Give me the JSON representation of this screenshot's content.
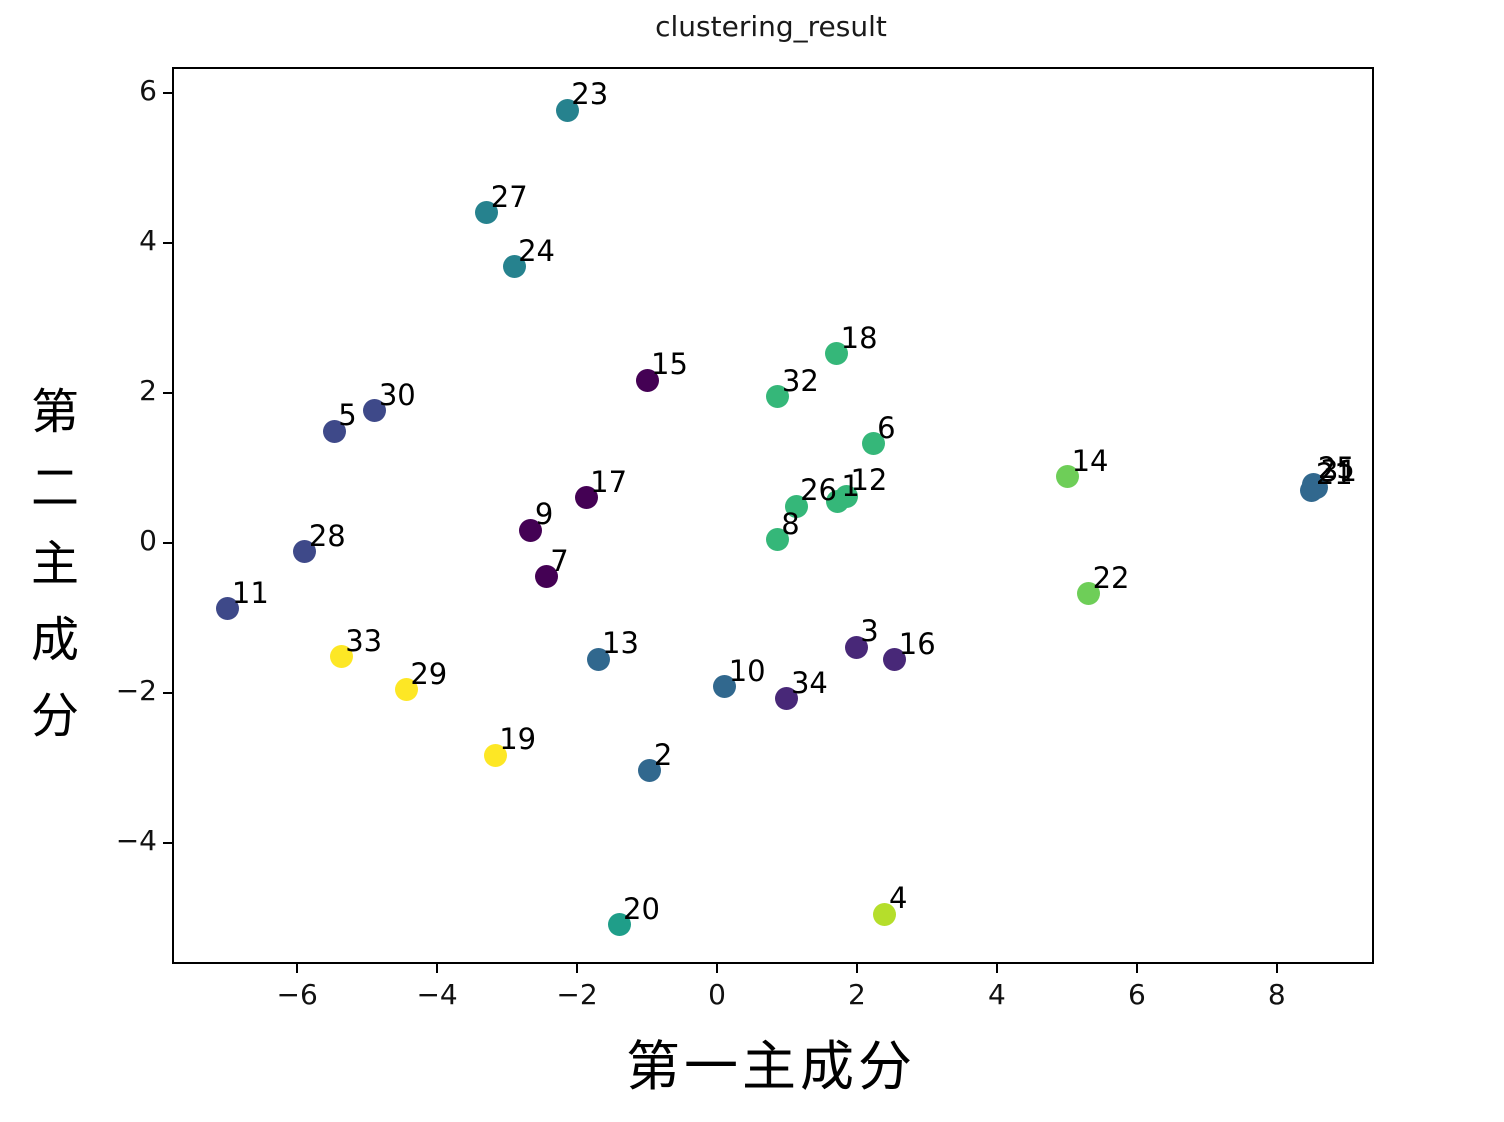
{
  "chart_data": {
    "type": "scatter",
    "title": "clustering_result",
    "xlabel": "第一主成分",
    "ylabel": "第二主成分",
    "xlim": [
      -7.76,
      9.36
    ],
    "ylim": [
      -5.59,
      6.32
    ],
    "xticks": [
      -6,
      -4,
      -2,
      0,
      2,
      4,
      6,
      8
    ],
    "yticks": [
      -4,
      -2,
      0,
      2,
      4,
      6
    ],
    "grid": false,
    "legend": "none",
    "cluster_colors": [
      "#440154",
      "#482878",
      "#3e4989",
      "#31688e",
      "#26828e",
      "#1f9e89",
      "#35b779",
      "#6ece58",
      "#b5de2b",
      "#fde725"
    ],
    "points": [
      {
        "label": "1",
        "x": 1.72,
        "y": 0.55,
        "cluster": 6
      },
      {
        "label": "2",
        "x": -0.96,
        "y": -3.04,
        "cluster": 3
      },
      {
        "label": "3",
        "x": 1.99,
        "y": -1.39,
        "cluster": 1
      },
      {
        "label": "4",
        "x": 2.4,
        "y": -4.95,
        "cluster": 8
      },
      {
        "label": "5",
        "x": -5.47,
        "y": 1.49,
        "cluster": 2
      },
      {
        "label": "6",
        "x": 2.23,
        "y": 1.32,
        "cluster": 6
      },
      {
        "label": "7",
        "x": -2.44,
        "y": -0.45,
        "cluster": 0
      },
      {
        "label": "8",
        "x": 0.86,
        "y": 0.04,
        "cluster": 6
      },
      {
        "label": "9",
        "x": -2.66,
        "y": 0.17,
        "cluster": 0
      },
      {
        "label": "10",
        "x": 0.11,
        "y": -1.92,
        "cluster": 3
      },
      {
        "label": "11",
        "x": -6.99,
        "y": -0.88,
        "cluster": 2
      },
      {
        "label": "12",
        "x": 1.85,
        "y": 0.62,
        "cluster": 6
      },
      {
        "label": "13",
        "x": -1.7,
        "y": -1.55,
        "cluster": 3
      },
      {
        "label": "14",
        "x": 5.01,
        "y": 0.88,
        "cluster": 7
      },
      {
        "label": "15",
        "x": -1.0,
        "y": 2.17,
        "cluster": 0
      },
      {
        "label": "16",
        "x": 2.54,
        "y": -1.56,
        "cluster": 1
      },
      {
        "label": "17",
        "x": -1.87,
        "y": 0.6,
        "cluster": 0
      },
      {
        "label": "18",
        "x": 1.71,
        "y": 2.52,
        "cluster": 6
      },
      {
        "label": "19",
        "x": -3.17,
        "y": -2.83,
        "cluster": 9
      },
      {
        "label": "20",
        "x": -1.4,
        "y": -5.09,
        "cluster": 5
      },
      {
        "label": "21",
        "x": 8.5,
        "y": 0.7,
        "cluster": 3
      },
      {
        "label": "22",
        "x": 5.31,
        "y": -0.68,
        "cluster": 7
      },
      {
        "label": "23",
        "x": -2.14,
        "y": 5.77,
        "cluster": 4
      },
      {
        "label": "24",
        "x": -2.9,
        "y": 3.68,
        "cluster": 4
      },
      {
        "label": "25",
        "x": 8.53,
        "y": 0.78,
        "cluster": 3
      },
      {
        "label": "26",
        "x": 1.13,
        "y": 0.49,
        "cluster": 6
      },
      {
        "label": "27",
        "x": -3.29,
        "y": 4.4,
        "cluster": 4
      },
      {
        "label": "28",
        "x": -5.89,
        "y": -0.12,
        "cluster": 2
      },
      {
        "label": "29",
        "x": -4.44,
        "y": -1.96,
        "cluster": 9
      },
      {
        "label": "30",
        "x": -4.89,
        "y": 1.76,
        "cluster": 2
      },
      {
        "label": "31",
        "x": 8.56,
        "y": 0.74,
        "cluster": 3
      },
      {
        "label": "32",
        "x": 0.87,
        "y": 1.95,
        "cluster": 6
      },
      {
        "label": "33",
        "x": -5.37,
        "y": -1.52,
        "cluster": 9
      },
      {
        "label": "34",
        "x": 1.0,
        "y": -2.08,
        "cluster": 1
      }
    ]
  }
}
